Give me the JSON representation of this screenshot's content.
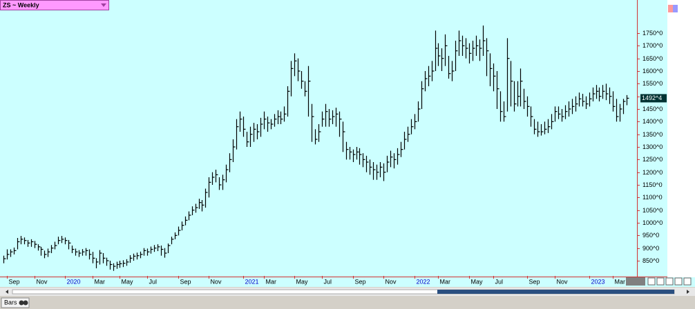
{
  "chart_data": {
    "type": "hlc",
    "symbol_menu": "ZS ~ Weekly",
    "toolbar_tab": "Bars",
    "ylim": [
      790,
      1881
    ],
    "yticks": [
      {
        "value": 850,
        "label": "850^0"
      },
      {
        "value": 900,
        "label": "900^0"
      },
      {
        "value": 950,
        "label": "950^0"
      },
      {
        "value": 1000,
        "label": "1000^0"
      },
      {
        "value": 1050,
        "label": "1050^0"
      },
      {
        "value": 1100,
        "label": "1100^0"
      },
      {
        "value": 1150,
        "label": "1150^0"
      },
      {
        "value": 1200,
        "label": "1200^0"
      },
      {
        "value": 1250,
        "label": "1250^0"
      },
      {
        "value": 1300,
        "label": "1300^0"
      },
      {
        "value": 1350,
        "label": "1350^0"
      },
      {
        "value": 1400,
        "label": "1400^0"
      },
      {
        "value": 1450,
        "label": "1450^0"
      },
      {
        "value": 1500,
        "label": "1500^0"
      },
      {
        "value": 1550,
        "label": "1550^0"
      },
      {
        "value": 1600,
        "label": "1600^0"
      },
      {
        "value": 1650,
        "label": "1650^0"
      },
      {
        "value": 1700,
        "label": "1700^0"
      },
      {
        "value": 1750,
        "label": "1750^0"
      }
    ],
    "xlim": [
      -1,
      185
    ],
    "xticks": [
      {
        "value": 1,
        "label": "Sep"
      },
      {
        "value": 9,
        "label": "Nov"
      },
      {
        "value": 18,
        "label": "2020"
      },
      {
        "value": 26,
        "label": "Mar"
      },
      {
        "value": 34,
        "label": "May"
      },
      {
        "value": 42,
        "label": "Jul"
      },
      {
        "value": 51,
        "label": "Sep"
      },
      {
        "value": 60,
        "label": "Nov"
      },
      {
        "value": 70,
        "label": "2021"
      },
      {
        "value": 76,
        "label": "Mar"
      },
      {
        "value": 85,
        "label": "May"
      },
      {
        "value": 93,
        "label": "Jul"
      },
      {
        "value": 102,
        "label": "Sep"
      },
      {
        "value": 111,
        "label": "Nov"
      },
      {
        "value": 120,
        "label": "2022"
      },
      {
        "value": 127,
        "label": "Mar"
      },
      {
        "value": 136,
        "label": "May"
      },
      {
        "value": 143,
        "label": "Jul"
      },
      {
        "value": 153,
        "label": "Sep"
      },
      {
        "value": 161,
        "label": "Nov"
      },
      {
        "value": 171,
        "label": "2023"
      },
      {
        "value": 178,
        "label": "Mar"
      }
    ],
    "color": "#000000",
    "high": [
      870,
      895,
      895,
      902,
      940,
      948,
      942,
      932,
      935,
      928,
      915,
      905,
      890,
      898,
      912,
      925,
      945,
      948,
      942,
      932,
      910,
      898,
      892,
      896,
      900,
      895,
      885,
      860,
      892,
      880,
      862,
      850,
      840,
      846,
      850,
      852,
      856,
      872,
      878,
      882,
      886,
      900,
      898,
      906,
      912,
      915,
      910,
      900,
      918,
      945,
      962,
      985,
      1005,
      1025,
      1045,
      1065,
      1075,
      1095,
      1090,
      1135,
      1180,
      1200,
      1210,
      1180,
      1190,
      1230,
      1275,
      1330,
      1410,
      1440,
      1420,
      1360,
      1380,
      1395,
      1390,
      1415,
      1440,
      1420,
      1410,
      1430,
      1445,
      1440,
      1460,
      1540,
      1640,
      1670,
      1650,
      1600,
      1560,
      1620,
      1470,
      1370,
      1390,
      1440,
      1470,
      1450,
      1445,
      1455,
      1440,
      1400,
      1320,
      1300,
      1290,
      1300,
      1295,
      1275,
      1265,
      1250,
      1240,
      1230,
      1240,
      1235,
      1265,
      1285,
      1275,
      1295,
      1320,
      1360,
      1380,
      1410,
      1430,
      1480,
      1560,
      1600,
      1620,
      1640,
      1760,
      1710,
      1690,
      1745,
      1660,
      1640,
      1720,
      1760,
      1740,
      1730,
      1710,
      1720,
      1740,
      1725,
      1780,
      1730,
      1670,
      1630,
      1600,
      1520,
      1480,
      1730,
      1640,
      1560,
      1560,
      1610,
      1530,
      1500,
      1460,
      1410,
      1400,
      1390,
      1400,
      1410,
      1430,
      1460,
      1460,
      1450,
      1465,
      1480,
      1490,
      1500,
      1515,
      1510,
      1500,
      1515,
      1535,
      1545,
      1535,
      1545,
      1550,
      1535,
      1520,
      1490,
      1470,
      1490,
      1505
    ],
    "low": [
      840,
      855,
      865,
      875,
      895,
      915,
      915,
      905,
      905,
      900,
      890,
      870,
      860,
      865,
      880,
      895,
      915,
      920,
      915,
      895,
      880,
      870,
      865,
      870,
      870,
      855,
      840,
      820,
      835,
      840,
      830,
      815,
      810,
      818,
      822,
      825,
      830,
      842,
      850,
      855,
      860,
      870,
      870,
      878,
      885,
      888,
      870,
      862,
      880,
      915,
      935,
      950,
      970,
      990,
      1010,
      1030,
      1040,
      1055,
      1045,
      1060,
      1100,
      1150,
      1160,
      1130,
      1130,
      1160,
      1200,
      1240,
      1290,
      1360,
      1340,
      1300,
      1300,
      1320,
      1330,
      1340,
      1370,
      1360,
      1370,
      1380,
      1390,
      1390,
      1400,
      1420,
      1500,
      1580,
      1560,
      1530,
      1500,
      1420,
      1320,
      1310,
      1320,
      1380,
      1380,
      1380,
      1390,
      1380,
      1340,
      1280,
      1250,
      1250,
      1240,
      1250,
      1230,
      1220,
      1200,
      1190,
      1170,
      1170,
      1180,
      1165,
      1200,
      1220,
      1215,
      1230,
      1260,
      1290,
      1320,
      1350,
      1370,
      1400,
      1450,
      1520,
      1540,
      1560,
      1600,
      1620,
      1600,
      1620,
      1570,
      1560,
      1600,
      1660,
      1660,
      1650,
      1630,
      1640,
      1660,
      1640,
      1660,
      1580,
      1540,
      1520,
      1450,
      1400,
      1400,
      1440,
      1460,
      1440,
      1460,
      1460,
      1450,
      1420,
      1380,
      1350,
      1340,
      1345,
      1350,
      1355,
      1370,
      1400,
      1410,
      1400,
      1410,
      1420,
      1430,
      1440,
      1460,
      1460,
      1450,
      1460,
      1480,
      1490,
      1480,
      1490,
      1485,
      1470,
      1440,
      1400,
      1400,
      1430,
      1465
    ],
    "close": [
      858,
      875,
      885,
      890,
      925,
      935,
      930,
      920,
      925,
      915,
      905,
      895,
      875,
      885,
      900,
      910,
      930,
      935,
      930,
      920,
      895,
      885,
      880,
      885,
      890,
      875,
      860,
      845,
      880,
      860,
      850,
      835,
      828,
      835,
      838,
      840,
      845,
      860,
      868,
      870,
      875,
      890,
      885,
      895,
      900,
      905,
      895,
      880,
      910,
      935,
      950,
      970,
      990,
      1010,
      1030,
      1050,
      1060,
      1080,
      1070,
      1120,
      1160,
      1180,
      1190,
      1150,
      1170,
      1210,
      1250,
      1300,
      1380,
      1410,
      1370,
      1320,
      1350,
      1370,
      1360,
      1390,
      1410,
      1395,
      1390,
      1410,
      1420,
      1410,
      1430,
      1520,
      1610,
      1640,
      1600,
      1560,
      1520,
      1560,
      1420,
      1330,
      1360,
      1410,
      1440,
      1410,
      1420,
      1430,
      1410,
      1360,
      1290,
      1280,
      1270,
      1280,
      1270,
      1250,
      1240,
      1220,
      1210,
      1200,
      1220,
      1200,
      1240,
      1260,
      1250,
      1270,
      1290,
      1330,
      1350,
      1380,
      1400,
      1450,
      1530,
      1570,
      1580,
      1600,
      1690,
      1660,
      1650,
      1700,
      1590,
      1600,
      1680,
      1720,
      1700,
      1690,
      1670,
      1690,
      1700,
      1690,
      1720,
      1680,
      1610,
      1580,
      1530,
      1440,
      1420,
      1650,
      1560,
      1470,
      1500,
      1560,
      1480,
      1460,
      1420,
      1370,
      1360,
      1360,
      1370,
      1380,
      1400,
      1440,
      1430,
      1420,
      1440,
      1450,
      1460,
      1470,
      1490,
      1480,
      1470,
      1490,
      1510,
      1520,
      1500,
      1520,
      1510,
      1500,
      1460,
      1420,
      1450,
      1480,
      1492.5
    ],
    "last_price": {
      "value": 1492.5,
      "label": "1492^4"
    }
  }
}
